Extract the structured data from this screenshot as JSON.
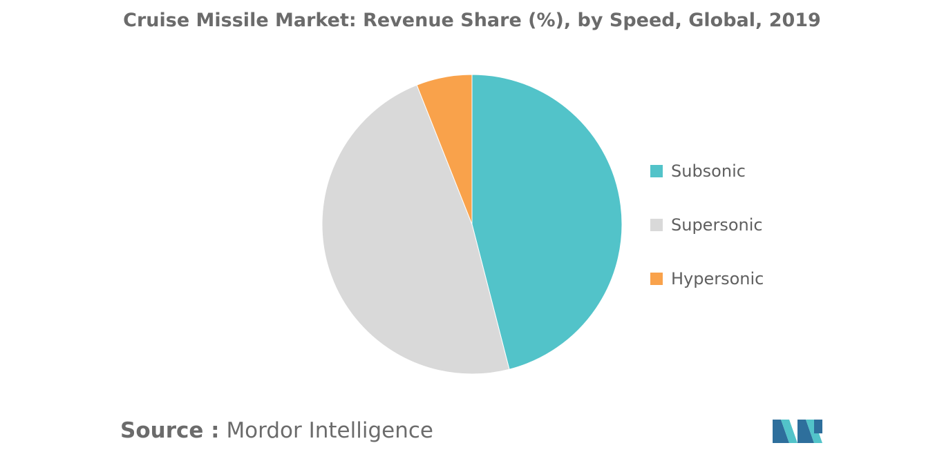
{
  "chart_data": {
    "type": "pie",
    "title": "Cruise Missile Market: Revenue Share (%), by Speed, Global, 2019",
    "slices": [
      {
        "label": "Subsonic",
        "value": 46,
        "color": "#52c3c9"
      },
      {
        "label": "Supersonic",
        "value": 48,
        "color": "#d9d9d9"
      },
      {
        "label": "Hypersonic",
        "value": 6,
        "color": "#f9a24b"
      }
    ],
    "legend_position": "right"
  },
  "source": {
    "prefix": "Source :",
    "text": "Mordor Intelligence"
  },
  "logo": {
    "icon": "mordor-intelligence-logo",
    "colors": [
      "#2e6f9c",
      "#52c3c9"
    ]
  }
}
